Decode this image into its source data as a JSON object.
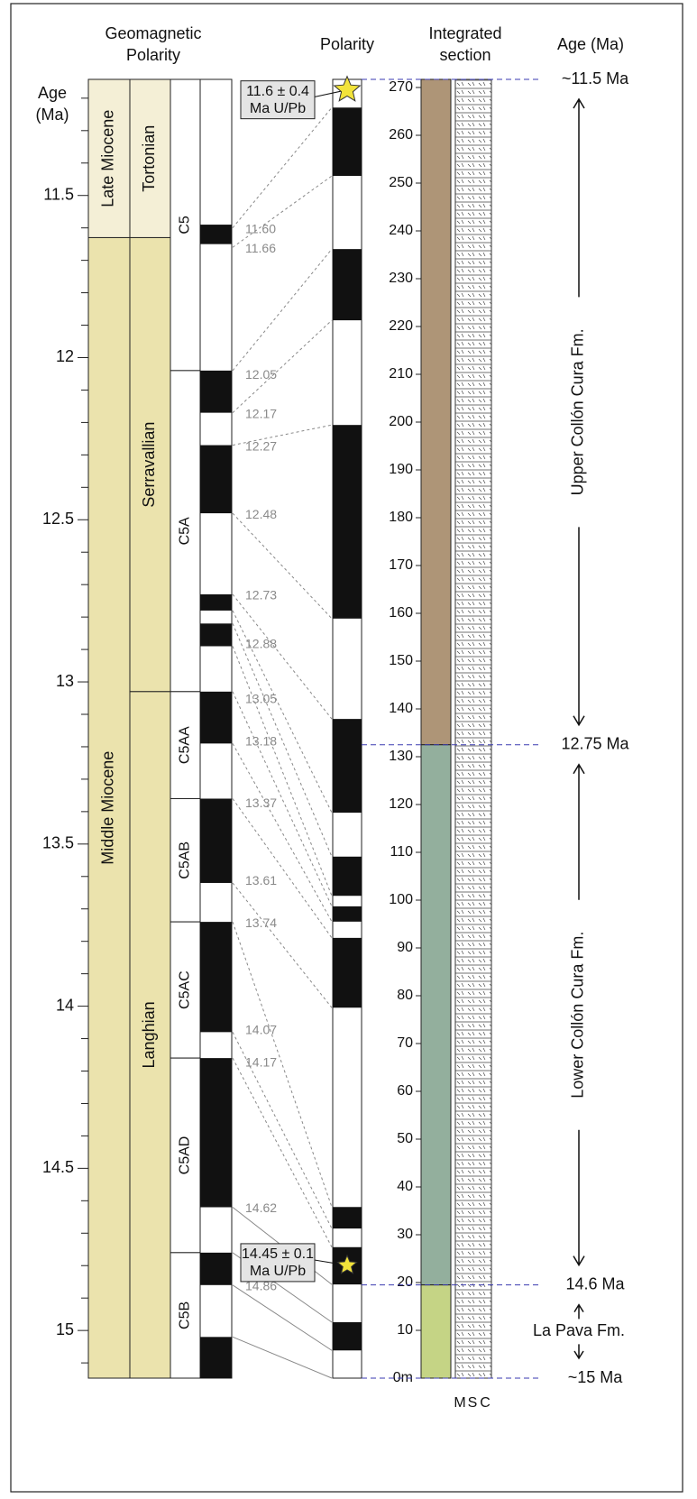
{
  "headers": {
    "geomagnetic": [
      "Geomagnetic",
      "Polarity"
    ],
    "polarity": "Polarity",
    "section": [
      "Integrated",
      "section"
    ],
    "age_right": "Age (Ma)",
    "age_left": [
      "Age",
      "(Ma)"
    ]
  },
  "age_axis": {
    "lim": [
      11.142,
      15.147
    ],
    "ticks": [
      11.5,
      12,
      12.5,
      13,
      13.5,
      14,
      14.5,
      15
    ],
    "minor_ticks": [
      11.2,
      11.3,
      11.4,
      11.6,
      11.7,
      11.8,
      11.9,
      12.1,
      12.2,
      12.3,
      12.4,
      12.6,
      12.7,
      12.8,
      12.9,
      13.1,
      13.2,
      13.3,
      13.4,
      13.6,
      13.7,
      13.8,
      13.9,
      14.1,
      14.2,
      14.3,
      14.4,
      14.6,
      14.7,
      14.8,
      14.9,
      15.1
    ]
  },
  "epochs": [
    {
      "name": "Late Miocene",
      "base": 11.63
    },
    {
      "name": "Middle Miocene",
      "base": 15.147
    }
  ],
  "stages": [
    {
      "name": "Tortonian",
      "base": 11.63
    },
    {
      "name": "Serravallian",
      "base": 13.03
    },
    {
      "name": "Langhian",
      "base": 15.147
    }
  ],
  "chrons": [
    {
      "name": "C5",
      "base": 12.04
    },
    {
      "name": "C5A",
      "base": 13.03
    },
    {
      "name": "C5AA",
      "base": 13.36
    },
    {
      "name": "C5AB",
      "base": 13.74
    },
    {
      "name": "C5AC",
      "base": 14.16
    },
    {
      "name": "C5AD",
      "base": 14.76
    },
    {
      "name": "C5B",
      "base": 15.147
    }
  ],
  "gpts_normal": [
    [
      11.59,
      11.65
    ],
    [
      12.04,
      12.17
    ],
    [
      12.27,
      12.48
    ],
    [
      12.73,
      12.78
    ],
    [
      12.82,
      12.89
    ],
    [
      13.03,
      13.19
    ],
    [
      13.36,
      13.62
    ],
    [
      13.74,
      14.08
    ],
    [
      14.16,
      14.62
    ],
    [
      14.76,
      14.86
    ],
    [
      15.02,
      15.147
    ]
  ],
  "gpts_labels": [
    {
      "value": 11.6,
      "label": "11.60"
    },
    11.66,
    12.05,
    12.17,
    12.27,
    12.48,
    12.73,
    12.88,
    13.05,
    13.18,
    13.37,
    13.61,
    13.74,
    14.07,
    14.17,
    14.62,
    14.86
  ],
  "meter_axis": {
    "lim": [
      0,
      271.7
    ],
    "ticks": [
      {
        "value": 0,
        "label": "0m"
      },
      10,
      20,
      30,
      40,
      50,
      60,
      70,
      80,
      90,
      100,
      110,
      120,
      130,
      140,
      150,
      160,
      170,
      180,
      190,
      200,
      210,
      220,
      230,
      240,
      250,
      260,
      270
    ]
  },
  "section_normal": [
    [
      265.8,
      251.5
    ],
    [
      236.2,
      221.3
    ],
    [
      199.4,
      158.9
    ],
    [
      137.9,
      118.3
    ],
    [
      109.1,
      100.9
    ],
    [
      98.7,
      95.5
    ],
    [
      92.1,
      77.5
    ],
    [
      35.8,
      31.3
    ],
    [
      27.4,
      19.6
    ],
    [
      11.7,
      5.8
    ]
  ],
  "units": [
    {
      "color": "#ae9577",
      "base": 132.5
    },
    {
      "color": "#93af9d",
      "base": 19.5
    },
    {
      "color": "#c5d485",
      "base": 0
    }
  ],
  "ages_right": [
    "~11.5 Ma",
    "12.75 Ma",
    "14.6 Ma",
    "~15 Ma"
  ],
  "formations": [
    "Upper Collón Cura Fm.",
    "Lower Collón Cura Fm.",
    "La Pava Fm."
  ],
  "dates": [
    {
      "lines": [
        "11.6 ± 0.4",
        "Ma U/Pb"
      ],
      "meter": 269.5
    },
    {
      "lines": [
        "14.45 ± 0.1",
        "Ma U/Pb"
      ],
      "meter": 23.6
    }
  ],
  "log_columns": [
    "M",
    "S",
    "C"
  ],
  "tie_lines": [
    [
      11.6,
      265.8
    ],
    [
      11.66,
      251.5
    ],
    [
      12.04,
      236.2
    ],
    [
      12.17,
      221.3
    ],
    [
      12.27,
      199.4
    ],
    [
      12.48,
      158.9
    ],
    [
      12.73,
      137.9
    ],
    [
      12.78,
      118.3
    ],
    [
      12.82,
      109.1
    ],
    [
      12.89,
      100.9
    ],
    [
      13.03,
      98.7
    ],
    [
      13.19,
      95.5
    ],
    [
      13.36,
      92.1
    ],
    [
      13.62,
      77.5
    ],
    [
      13.74,
      35.8
    ],
    [
      14.08,
      31.3
    ],
    [
      14.16,
      27.4
    ],
    [
      14.62,
      19.6
    ],
    [
      14.76,
      11.7
    ],
    [
      14.86,
      5.8
    ],
    [
      15.02,
      0
    ]
  ]
}
